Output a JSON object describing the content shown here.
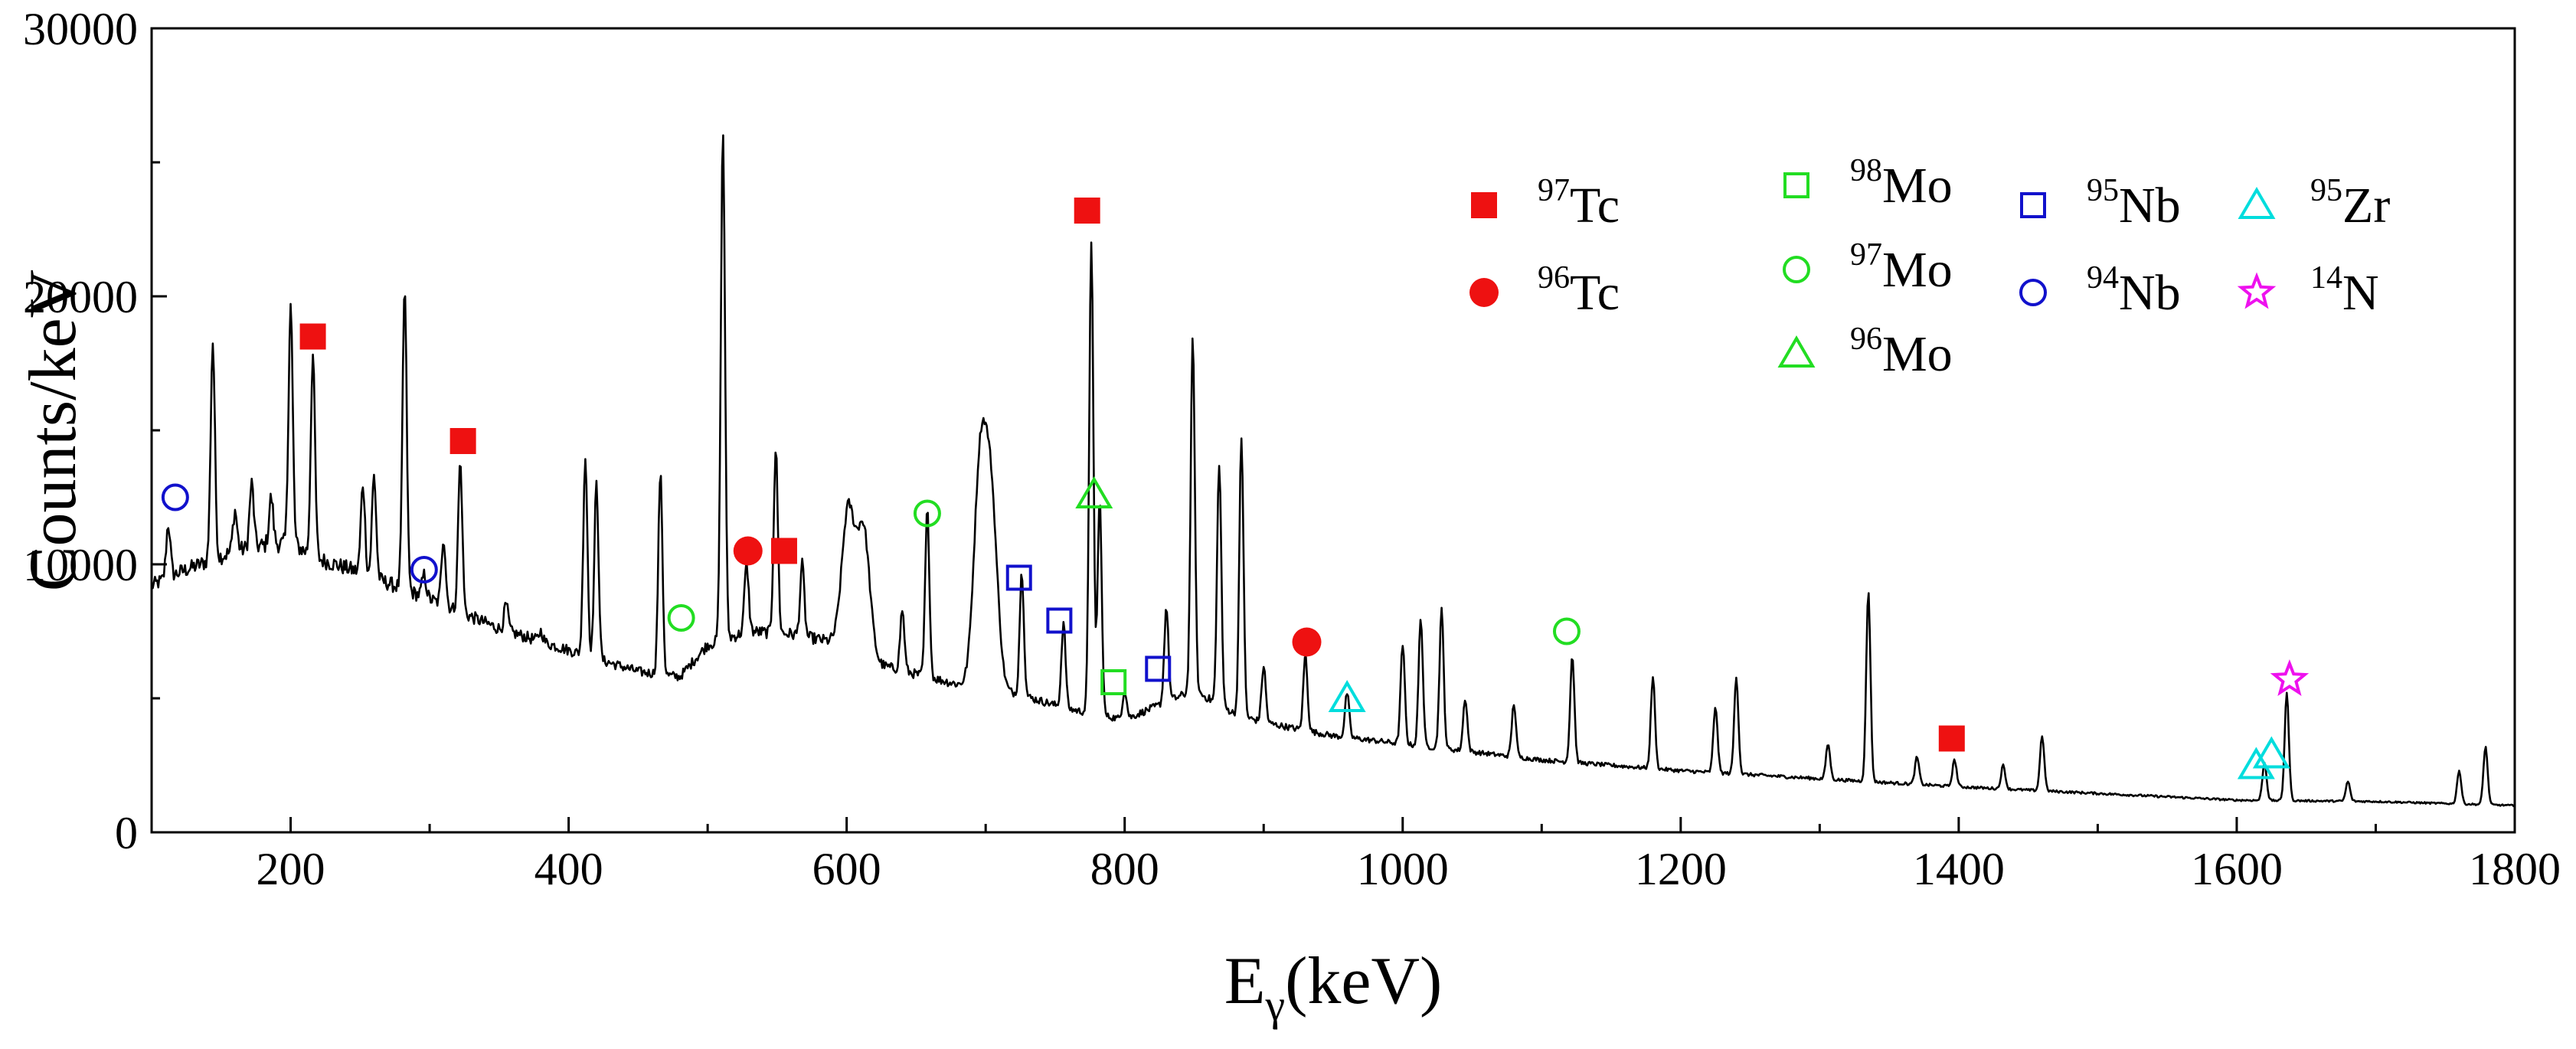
{
  "chart_data": {
    "type": "line",
    "xlabel": {
      "main": "E",
      "sub": "γ",
      "rest": "(keV)"
    },
    "ylabel": "Counts/keV",
    "xlim": [
      100,
      1800
    ],
    "ylim": [
      0,
      30000
    ],
    "x_ticks": [
      200,
      400,
      600,
      800,
      1000,
      1200,
      1400,
      1600,
      1800
    ],
    "y_ticks": [
      0,
      10000,
      20000,
      30000
    ],
    "grid": false,
    "legend_position": "top-right",
    "spectrum": {
      "background": [
        [
          100,
          9200
        ],
        [
          120,
          9700
        ],
        [
          140,
          10100
        ],
        [
          160,
          10500
        ],
        [
          180,
          10700
        ],
        [
          200,
          10800
        ],
        [
          220,
          10200
        ],
        [
          250,
          9700
        ],
        [
          300,
          8700
        ],
        [
          350,
          7600
        ],
        [
          400,
          6800
        ],
        [
          450,
          6000
        ],
        [
          480,
          5800
        ],
        [
          500,
          7000
        ],
        [
          530,
          7500
        ],
        [
          560,
          7400
        ],
        [
          590,
          7100
        ],
        [
          620,
          6300
        ],
        [
          650,
          5900
        ],
        [
          690,
          5400
        ],
        [
          720,
          5200
        ],
        [
          760,
          4600
        ],
        [
          800,
          4200
        ],
        [
          850,
          5300
        ],
        [
          880,
          4400
        ],
        [
          900,
          4100
        ],
        [
          950,
          3600
        ],
        [
          1000,
          3300
        ],
        [
          1050,
          3000
        ],
        [
          1100,
          2700
        ],
        [
          1150,
          2500
        ],
        [
          1200,
          2300
        ],
        [
          1300,
          2000
        ],
        [
          1400,
          1700
        ],
        [
          1500,
          1450
        ],
        [
          1600,
          1200
        ],
        [
          1700,
          1150
        ],
        [
          1800,
          1000
        ]
      ],
      "peaks": [
        [
          112,
          11500
        ],
        [
          144,
          18300
        ],
        [
          160,
          12000
        ],
        [
          172,
          13000
        ],
        [
          186,
          12500
        ],
        [
          200,
          19700
        ],
        [
          216,
          17800
        ],
        [
          252,
          13000
        ],
        [
          260,
          13300
        ],
        [
          282,
          20300
        ],
        [
          296,
          9600
        ],
        [
          310,
          11000
        ],
        [
          322,
          13800
        ],
        [
          355,
          8500
        ],
        [
          380,
          7500
        ],
        [
          412,
          14000
        ],
        [
          420,
          13000
        ],
        [
          466,
          13400
        ],
        [
          511,
          26200
        ],
        [
          528,
          10000
        ],
        [
          549,
          14300
        ],
        [
          568,
          10000
        ],
        [
          601,
          12000
        ],
        [
          612,
          11300
        ],
        [
          640,
          8300
        ],
        [
          658,
          12000
        ],
        [
          696,
          13400
        ],
        [
          704,
          12000
        ],
        [
          726,
          9700
        ],
        [
          756,
          7800
        ],
        [
          776,
          22100
        ],
        [
          782,
          12400
        ],
        [
          800,
          5300
        ],
        [
          830,
          8400
        ],
        [
          849,
          18400
        ],
        [
          868,
          13800
        ],
        [
          884,
          14700
        ],
        [
          900,
          6200
        ],
        [
          930,
          6600
        ],
        [
          960,
          5200
        ],
        [
          1000,
          7000
        ],
        [
          1013,
          8000
        ],
        [
          1028,
          8300
        ],
        [
          1045,
          5000
        ],
        [
          1080,
          4800
        ],
        [
          1122,
          6600
        ],
        [
          1180,
          5800
        ],
        [
          1225,
          4700
        ],
        [
          1240,
          5800
        ],
        [
          1306,
          3300
        ],
        [
          1335,
          9000
        ],
        [
          1370,
          2800
        ],
        [
          1397,
          2700
        ],
        [
          1432,
          2500
        ],
        [
          1460,
          3600
        ],
        [
          1620,
          2600
        ],
        [
          1636,
          5200
        ],
        [
          1680,
          1900
        ],
        [
          1760,
          2300
        ],
        [
          1779,
          3200
        ]
      ]
    },
    "markers": [
      {
        "iso": "97Tc",
        "shape": "filled-square",
        "color": "#ee1111",
        "points": [
          [
            216,
            18500
          ],
          [
            324,
            14600
          ],
          [
            555,
            10500
          ],
          [
            773,
            23200
          ],
          [
            1395,
            3500
          ]
        ]
      },
      {
        "iso": "96Tc",
        "shape": "filled-circle",
        "color": "#ee1111",
        "points": [
          [
            529,
            10500
          ],
          [
            931,
            7100
          ]
        ]
      },
      {
        "iso": "98Mo",
        "shape": "open-square",
        "color": "#22dd22",
        "points": [
          [
            792,
            5600
          ]
        ]
      },
      {
        "iso": "97Mo",
        "shape": "open-circle",
        "color": "#22dd22",
        "points": [
          [
            481,
            8000
          ],
          [
            658,
            11900
          ],
          [
            1118,
            7500
          ]
        ]
      },
      {
        "iso": "96Mo",
        "shape": "open-triangle",
        "color": "#22dd22",
        "points": [
          [
            778,
            12600
          ]
        ]
      },
      {
        "iso": "95Nb",
        "shape": "open-square",
        "color": "#1111cc",
        "points": [
          [
            724,
            9500
          ],
          [
            753,
            7900
          ],
          [
            824,
            6100
          ]
        ]
      },
      {
        "iso": "94Nb",
        "shape": "open-circle",
        "color": "#1111cc",
        "points": [
          [
            117,
            12500
          ],
          [
            296,
            9800
          ]
        ]
      },
      {
        "iso": "95Zr",
        "shape": "open-triangle",
        "color": "#00dddd",
        "points": [
          [
            960,
            5000
          ],
          [
            1614,
            2500
          ],
          [
            1625,
            2900
          ]
        ]
      },
      {
        "iso": "14N",
        "shape": "star",
        "color": "#ee11ee",
        "points": [
          [
            1638,
            5700
          ]
        ]
      }
    ],
    "legend": [
      {
        "mass": "97",
        "elem": "Tc",
        "shape": "filled-square",
        "color": "#ee1111"
      },
      {
        "mass": "96",
        "elem": "Tc",
        "shape": "filled-circle",
        "color": "#ee1111"
      },
      {
        "mass": "98",
        "elem": "Mo",
        "shape": "open-square",
        "color": "#22dd22"
      },
      {
        "mass": "97",
        "elem": "Mo",
        "shape": "open-circle",
        "color": "#22dd22"
      },
      {
        "mass": "96",
        "elem": "Mo",
        "shape": "open-triangle",
        "color": "#22dd22"
      },
      {
        "mass": "95",
        "elem": "Nb",
        "shape": "open-square",
        "color": "#1111cc"
      },
      {
        "mass": "94",
        "elem": "Nb",
        "shape": "open-circle",
        "color": "#1111cc"
      },
      {
        "mass": "95",
        "elem": "Zr",
        "shape": "open-triangle",
        "color": "#00dddd"
      },
      {
        "mass": "14",
        "elem": "N",
        "shape": "star",
        "color": "#ee11ee"
      }
    ]
  }
}
